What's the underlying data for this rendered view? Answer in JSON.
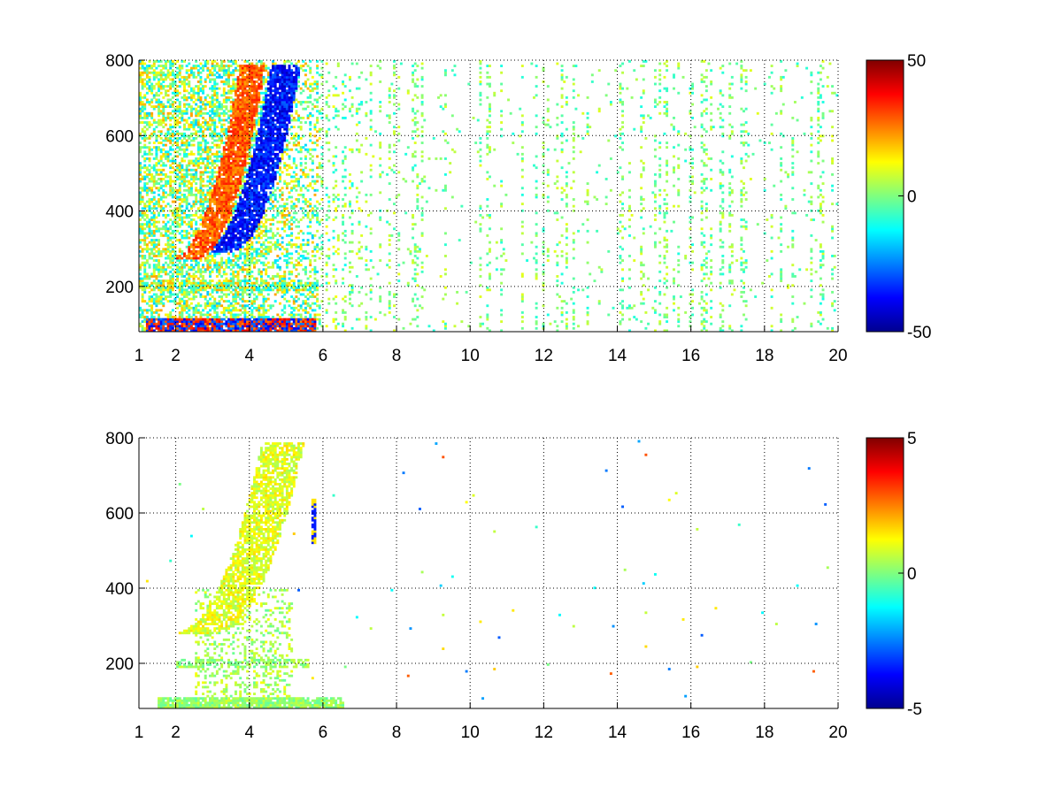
{
  "chart_data": [
    {
      "type": "heatmap",
      "title": "",
      "xlabel": "",
      "ylabel": "",
      "xlim": [
        1,
        20
      ],
      "ylim": [
        80,
        800
      ],
      "xticks": [
        1,
        2,
        4,
        6,
        8,
        10,
        12,
        14,
        16,
        18,
        20
      ],
      "yticks": [
        200,
        400,
        600,
        800
      ],
      "grid": true,
      "colormap": "jet",
      "clim": [
        -50,
        50
      ],
      "colorbar_ticks": [
        -50,
        0,
        50
      ],
      "features": [
        {
          "name": "positive ridge",
          "x_start": 2.1,
          "y_start": 270,
          "x_end": 4.1,
          "y_end": 790,
          "value": 30
        },
        {
          "name": "negative ridge",
          "x_start": 3.0,
          "y_start": 290,
          "x_end": 5.0,
          "y_end": 790,
          "value": -40
        },
        {
          "name": "bottom band",
          "x_start": 1.2,
          "x_end": 5.8,
          "y": 85,
          "value": 40
        },
        {
          "name": "streak",
          "x": 5.75,
          "y_start": 80,
          "y_end": 620,
          "value": -20
        }
      ]
    },
    {
      "type": "heatmap",
      "title": "",
      "xlabel": "",
      "ylabel": "",
      "xlim": [
        1,
        20
      ],
      "ylim": [
        80,
        800
      ],
      "xticks": [
        1,
        2,
        4,
        6,
        8,
        10,
        12,
        14,
        16,
        18,
        20
      ],
      "yticks": [
        200,
        400,
        600,
        800
      ],
      "grid": true,
      "colormap": "jet",
      "clim": [
        -5,
        5
      ],
      "colorbar_ticks": [
        -5,
        0,
        5
      ],
      "features": [
        {
          "name": "arc",
          "x_start": 2.1,
          "y_start": 280,
          "x_end": 4.6,
          "y_end": 790,
          "value": 1.5
        },
        {
          "name": "bottom band",
          "x_start": 1.5,
          "x_end": 6.6,
          "y": 90,
          "value": 0.3
        },
        {
          "name": "streak",
          "x": 5.75,
          "y_start": 520,
          "y_end": 640,
          "value": -3
        }
      ]
    }
  ]
}
